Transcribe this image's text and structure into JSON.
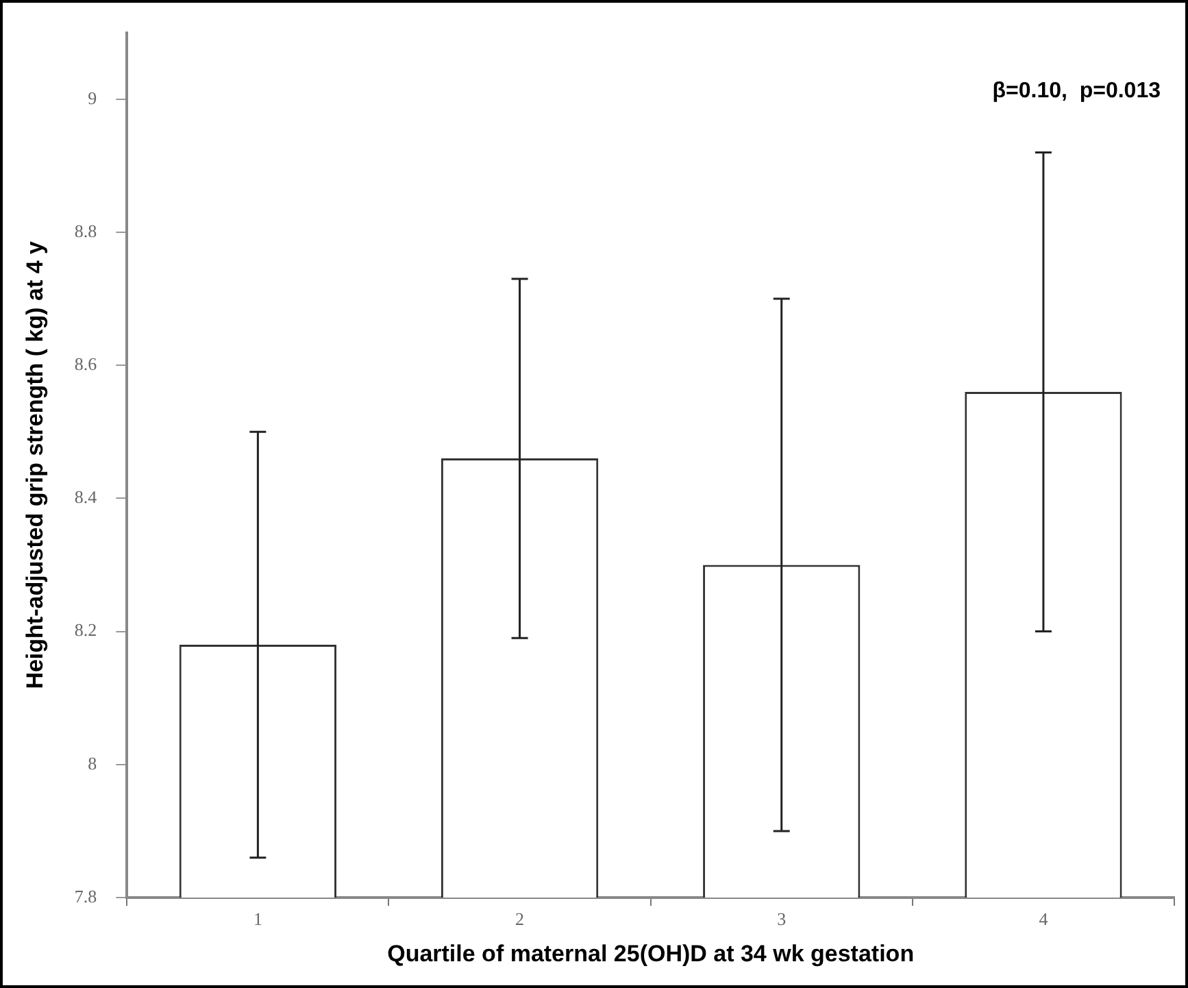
{
  "chart_data": {
    "type": "bar",
    "categories": [
      "1",
      "2",
      "3",
      "4"
    ],
    "values": [
      8.18,
      8.46,
      8.3,
      8.56
    ],
    "errors": [
      0.32,
      0.27,
      0.4,
      0.36
    ],
    "color": "#ffffff",
    "xlabel": "Quartile of maternal 25(OH)D at 34 wk gestation",
    "ylabel": "Height-adjusted grip strength ( kg) at 4 y",
    "annotations": [
      "β=0.10,  p=0.013"
    ],
    "ylim": [
      7.8,
      9.1
    ],
    "yticks": [
      7.8,
      8,
      8.2,
      8.4,
      8.6,
      8.8,
      9
    ],
    "grid": false,
    "legend": false
  }
}
